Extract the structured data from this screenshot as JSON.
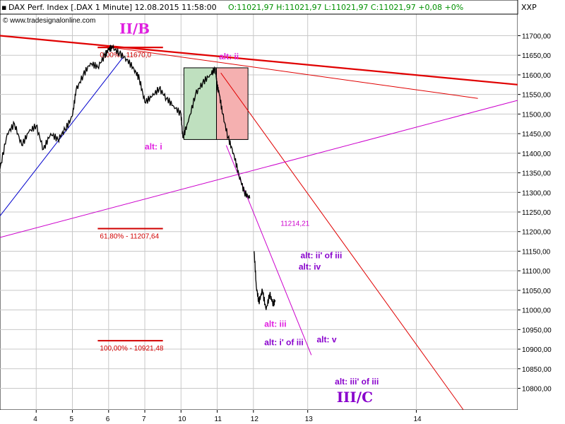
{
  "header": {
    "title": "DAX Perf. Index [.DAX  1 Minute] 12.08.2015 11:58:00",
    "ohlc": "O:11021,97 H:11021,97 L:11021,97 C:11021,97 +0,08 +0%",
    "symbol": "XXP",
    "watermark": "© www.tradesignalonline.com"
  },
  "colors": {
    "price": "#000000",
    "trend_red": "#e00000",
    "trend_magenta": "#cc00cc",
    "trend_blue": "#0000cc",
    "label_magenta": "#e020e0",
    "label_purple": "#8800cc",
    "fib_red": "#d00000",
    "grid": "#c8c8c8",
    "box_green": "#bfe0bf",
    "box_red": "#f5b0b0"
  },
  "chart_data": {
    "type": "line",
    "ylim": [
      10745,
      11755
    ],
    "xlim": [
      0,
      14.3
    ],
    "y_ticks": [
      11700,
      11650,
      11600,
      11550,
      11500,
      11450,
      11400,
      11350,
      11300,
      11250,
      11200,
      11150,
      11100,
      11050,
      11000,
      10950,
      10900,
      10850,
      10800
    ],
    "y_tick_labels": [
      "11700,00",
      "11650,00",
      "11600,00",
      "11550,00",
      "11500,00",
      "11450,00",
      "11400,00",
      "11350,00",
      "11300,00",
      "11250,00",
      "11200,00",
      "11150,00",
      "11100,00",
      "11050,00",
      "11000,00",
      "10950,00",
      "10900,00",
      "10850,00",
      "10800,00"
    ],
    "x_ticks": [
      {
        "x": 1.0,
        "label": "4"
      },
      {
        "x": 2.0,
        "label": "5"
      },
      {
        "x": 3.0,
        "label": "6"
      },
      {
        "x": 4.0,
        "label": "7"
      },
      {
        "x": 5.0,
        "label": "10"
      },
      {
        "x": 6.0,
        "label": "11"
      },
      {
        "x": 7.0,
        "label": "12"
      },
      {
        "x": 8.5,
        "label": "13"
      },
      {
        "x": 11.5,
        "label": "14"
      }
    ],
    "price_path": [
      [
        0.0,
        11360
      ],
      [
        0.2,
        11450
      ],
      [
        0.4,
        11475
      ],
      [
        0.6,
        11420
      ],
      [
        0.8,
        11455
      ],
      [
        1.0,
        11470
      ],
      [
        1.2,
        11410
      ],
      [
        1.4,
        11450
      ],
      [
        1.6,
        11435
      ],
      [
        1.8,
        11460
      ],
      [
        2.0,
        11495
      ],
      [
        2.1,
        11560
      ],
      [
        2.3,
        11600
      ],
      [
        2.5,
        11630
      ],
      [
        2.7,
        11620
      ],
      [
        2.9,
        11650
      ],
      [
        3.0,
        11665
      ],
      [
        3.1,
        11670
      ],
      [
        3.3,
        11655
      ],
      [
        3.5,
        11640
      ],
      [
        3.7,
        11615
      ],
      [
        3.85,
        11590
      ],
      [
        4.0,
        11530
      ],
      [
        4.2,
        11545
      ],
      [
        4.4,
        11565
      ],
      [
        4.6,
        11540
      ],
      [
        4.8,
        11520
      ],
      [
        5.0,
        11500
      ],
      [
        5.05,
        11440
      ],
      [
        5.2,
        11480
      ],
      [
        5.4,
        11550
      ],
      [
        5.6,
        11580
      ],
      [
        5.8,
        11600
      ],
      [
        5.95,
        11615
      ],
      [
        6.0,
        11570
      ],
      [
        6.05,
        11555
      ],
      [
        6.15,
        11500
      ],
      [
        6.3,
        11440
      ],
      [
        6.45,
        11400
      ],
      [
        6.6,
        11345
      ],
      [
        6.75,
        11300
      ],
      [
        6.9,
        11285
      ]
    ],
    "price_path2": [
      [
        7.02,
        11150
      ],
      [
        7.08,
        11060
      ],
      [
        7.15,
        11020
      ],
      [
        7.25,
        11050
      ],
      [
        7.35,
        11000
      ],
      [
        7.45,
        11040
      ],
      [
        7.55,
        11015
      ],
      [
        7.6,
        11025
      ]
    ],
    "trend_lines": [
      {
        "color": "trend_red",
        "width": 2.2,
        "from": [
          0.0,
          11700
        ],
        "to": [
          14.3,
          11575
        ]
      },
      {
        "color": "trend_red",
        "width": 1,
        "from": [
          2.95,
          11672
        ],
        "to": [
          13.2,
          11540
        ]
      },
      {
        "color": "trend_red",
        "width": 1,
        "from": [
          6.1,
          11605
        ],
        "to": [
          12.8,
          10745
        ]
      },
      {
        "color": "trend_magenta",
        "width": 1,
        "from": [
          0.0,
          11185
        ],
        "to": [
          14.3,
          11535
        ]
      },
      {
        "color": "trend_magenta",
        "width": 1,
        "from": [
          6.25,
          11420
        ],
        "to": [
          8.6,
          10885
        ]
      },
      {
        "color": "trend_blue",
        "width": 1,
        "from": [
          0.0,
          11240
        ],
        "to": [
          3.4,
          11645
        ]
      },
      {
        "color": "trend_red",
        "width": 2,
        "from": [
          2.7,
          11670
        ],
        "to": [
          4.5,
          11670
        ]
      }
    ],
    "boxes": [
      {
        "color": "box_green",
        "x0": 5.08,
        "x1": 5.98,
        "y0": 11435,
        "y1": 11618
      },
      {
        "color": "box_red",
        "x0": 5.98,
        "x1": 6.85,
        "y0": 11435,
        "y1": 11618
      }
    ],
    "fib_levels": [
      {
        "label": "0,00% - 11670,0",
        "value": 11670,
        "x0": 2.7,
        "x1": 4.5
      },
      {
        "label": "61,80% - 11207,64",
        "value": 11207.64,
        "x0": 2.7,
        "x1": 4.5
      },
      {
        "label": "100,00% - 10921,48",
        "value": 10921.48,
        "x0": 2.7,
        "x1": 4.5
      }
    ],
    "annotations": [
      {
        "text": "II/B",
        "x": 3.3,
        "y": 11705,
        "style": "big",
        "color": "label_magenta"
      },
      {
        "text": "alt: ii",
        "x": 6.05,
        "y": 11640,
        "style": "normal",
        "color": "label_magenta"
      },
      {
        "text": "alt: i",
        "x": 4.0,
        "y": 11410,
        "style": "normal",
        "color": "label_magenta"
      },
      {
        "text": "11214,21",
        "x": 7.75,
        "y": 11215,
        "style": "small",
        "color": "trend_magenta"
      },
      {
        "text": "alt: ii' of iii",
        "x": 8.3,
        "y": 11132,
        "style": "normal",
        "color": "label_purple"
      },
      {
        "text": "alt: iv",
        "x": 8.25,
        "y": 11103,
        "style": "normal",
        "color": "label_purple"
      },
      {
        "text": "alt: iii",
        "x": 7.3,
        "y": 10957,
        "style": "normal",
        "color": "label_magenta"
      },
      {
        "text": "alt: i' of iii",
        "x": 7.3,
        "y": 10910,
        "style": "normal",
        "color": "label_purple"
      },
      {
        "text": "alt: v",
        "x": 8.75,
        "y": 10917,
        "style": "normal",
        "color": "label_purple"
      },
      {
        "text": "alt: iii' of iii",
        "x": 9.25,
        "y": 10810,
        "style": "normal",
        "color": "label_purple"
      },
      {
        "text": "III/C",
        "x": 9.3,
        "y": 10765,
        "style": "big",
        "color": "label_purple"
      }
    ]
  }
}
